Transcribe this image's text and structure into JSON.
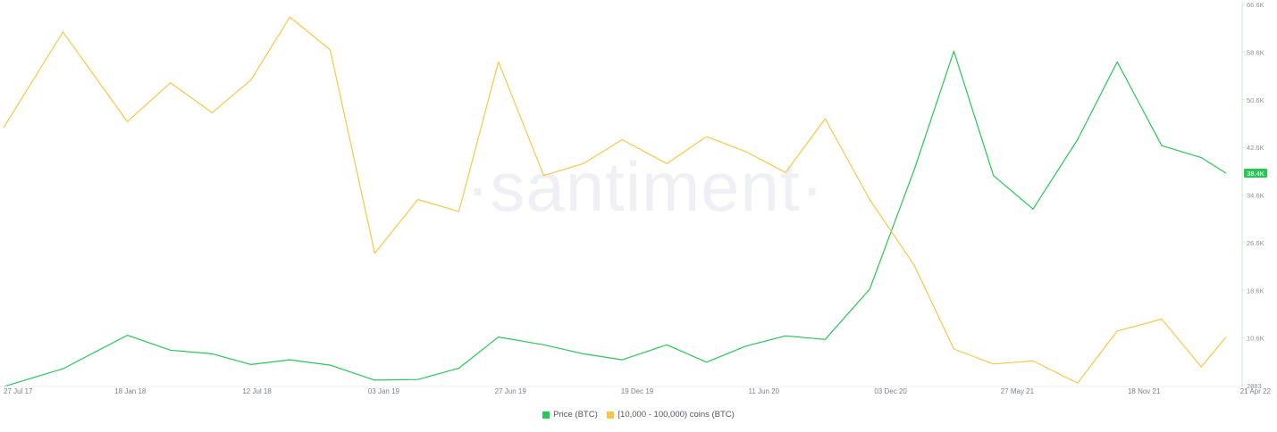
{
  "watermark": "·santiment·",
  "chart_data": {
    "type": "line",
    "x_tick_labels": [
      "27 Jul 17",
      "18 Jan 18",
      "12 Jul 18",
      "03 Jan 19",
      "27 Jun 19",
      "19 Dec 19",
      "11 Jun 20",
      "03 Dec 20",
      "27 May 21",
      "18 Nov 21",
      "21 Apr 22"
    ],
    "y_tick_labels": [
      "66.6K",
      "58.6K",
      "50.6K",
      "42.6K",
      "34.6K",
      "26.6K",
      "18.6K",
      "10.6K",
      "2883"
    ],
    "ylim": [
      2883,
      66600
    ],
    "current_value_label": "38.4K",
    "grid": false,
    "legend_position": "bottom",
    "colors": {
      "price": "#26c953",
      "holders": "#f7c744",
      "current_badge": "#26c953"
    },
    "x": [
      "2017-07-27",
      "2017-10-19",
      "2018-01-18",
      "2018-03-20",
      "2018-05-18",
      "2018-07-12",
      "2018-09-05",
      "2018-11-01",
      "2019-01-03",
      "2019-03-05",
      "2019-05-02",
      "2019-06-27",
      "2019-08-30",
      "2019-10-25",
      "2019-12-19",
      "2020-02-20",
      "2020-04-16",
      "2020-06-11",
      "2020-08-06",
      "2020-10-01",
      "2020-12-03",
      "2021-02-04",
      "2021-04-01",
      "2021-05-27",
      "2021-07-22",
      "2021-09-23",
      "2021-11-18",
      "2022-01-20",
      "2022-03-17",
      "2022-04-21"
    ],
    "series": [
      {
        "name": "Price (BTC)",
        "values": [
          2700,
          5700,
          11300,
          8800,
          8200,
          6400,
          7200,
          6300,
          3800,
          3900,
          5800,
          11000,
          9700,
          8200,
          7200,
          9700,
          6800,
          9500,
          11200,
          10600,
          19000,
          39000,
          58800,
          38000,
          32400,
          44000,
          57000,
          43000,
          41000,
          38400
        ]
      },
      {
        "name": "[10,000 - 100,000) coins (BTC)",
        "values": [
          46000,
          62000,
          47000,
          53500,
          48500,
          54000,
          64500,
          59000,
          25000,
          34000,
          32000,
          57000,
          38000,
          40000,
          44000,
          40000,
          44500,
          42000,
          38500,
          47500,
          34000,
          23000,
          9000,
          6500,
          7000,
          3300,
          12000,
          14000,
          6000,
          11000
        ]
      }
    ]
  }
}
